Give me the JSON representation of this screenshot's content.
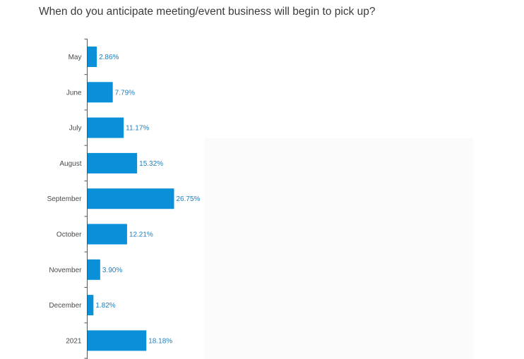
{
  "question": "When do you anticipate meeting/event business will begin to pick up?",
  "colors": {
    "bar": "#0a8fd9",
    "value_label": "#1a7fc0",
    "axis": "#555555"
  },
  "chart_data": {
    "type": "bar",
    "orientation": "horizontal",
    "title": "When do you anticipate meeting/event business will begin to pick up?",
    "categories": [
      "May",
      "June",
      "July",
      "August",
      "September",
      "October",
      "November",
      "December",
      "2021"
    ],
    "values": [
      2.86,
      7.79,
      11.17,
      15.32,
      26.75,
      12.21,
      3.9,
      1.82,
      18.18
    ],
    "value_labels": [
      "2.86%",
      "7.79%",
      "11.17%",
      "15.32%",
      "26.75%",
      "12.21%",
      "3.90%",
      "1.82%",
      "18.18%"
    ],
    "unit": "%",
    "xlim": [
      0,
      100
    ],
    "grid": false,
    "legend": "none"
  }
}
